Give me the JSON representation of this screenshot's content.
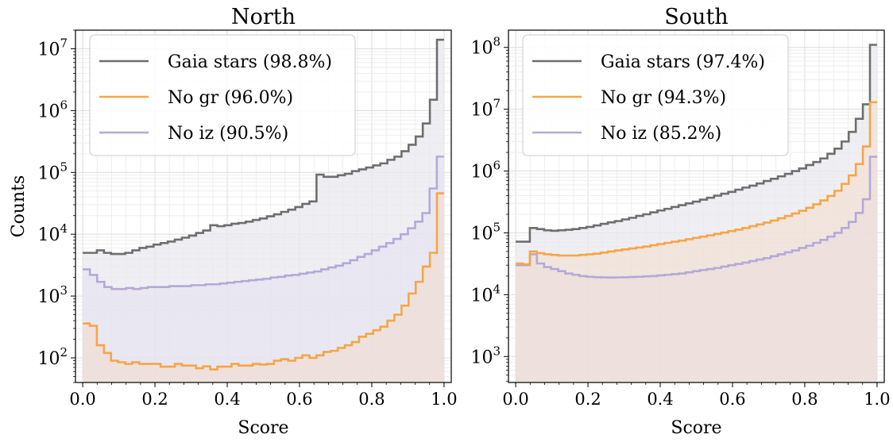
{
  "figure": {
    "ylabel": "Counts"
  },
  "colors": {
    "gaia": "#6e6e6e",
    "nogr": "#f7a545",
    "noiz": "#b4a9d8",
    "gaia_fill": "#e9e9ef",
    "nogr_fill": "#f3ddcc",
    "noiz_fill": "#e3e0ee"
  },
  "chart_data": [
    {
      "type": "line",
      "style": "step-histogram",
      "title": "North",
      "xlabel": "Score",
      "ylabel": "Counts",
      "xlim": [
        -0.02,
        1.02
      ],
      "ylim": [
        40,
        20000000
      ],
      "yscale": "log",
      "grid": true,
      "legend": "top-left",
      "x_ticks": [
        0.0,
        0.2,
        0.4,
        0.6,
        0.8,
        1.0
      ],
      "x_tick_labels": [
        "0.0",
        "0.2",
        "0.4",
        "0.6",
        "0.8",
        "1.0"
      ],
      "y_ticks": [
        100,
        1000,
        10000,
        100000,
        1000000,
        10000000
      ],
      "y_tick_labels": [
        [
          "10",
          "2"
        ],
        [
          "10",
          "3"
        ],
        [
          "10",
          "4"
        ],
        [
          "10",
          "5"
        ],
        [
          "10",
          "6"
        ],
        [
          "10",
          "7"
        ]
      ],
      "bin_edges_range": [
        0,
        1
      ],
      "bins": 50,
      "series": [
        {
          "name": "Gaia stars (98.8%)",
          "key": "gaia",
          "values": [
            5000,
            5000,
            5500,
            5000,
            4800,
            4800,
            5000,
            5500,
            6000,
            6300,
            6800,
            7200,
            7600,
            8200,
            8800,
            9500,
            10500,
            11500,
            14000,
            13500,
            14000,
            14800,
            15200,
            16000,
            17000,
            18000,
            19500,
            21000,
            23000,
            25000,
            27500,
            31000,
            34000,
            92000,
            85000,
            85000,
            90000,
            95000,
            105000,
            112000,
            120000,
            130000,
            140000,
            160000,
            180000,
            220000,
            280000,
            380000,
            620000,
            1500000,
            14000000
          ]
        },
        {
          "name": "No gr (96.0%)",
          "key": "nogr",
          "values": [
            360,
            330,
            160,
            120,
            90,
            85,
            80,
            85,
            80,
            80,
            80,
            72,
            72,
            80,
            75,
            75,
            68,
            73,
            65,
            72,
            72,
            80,
            75,
            75,
            80,
            78,
            80,
            90,
            95,
            90,
            100,
            110,
            100,
            110,
            125,
            130,
            145,
            160,
            180,
            220,
            245,
            280,
            320,
            400,
            500,
            700,
            1100,
            1700,
            3000,
            5000,
            46000
          ]
        },
        {
          "name": "No iz (90.5%)",
          "key": "noiz",
          "values": [
            2700,
            2200,
            1700,
            1400,
            1300,
            1300,
            1350,
            1300,
            1350,
            1400,
            1400,
            1400,
            1450,
            1450,
            1450,
            1500,
            1500,
            1550,
            1550,
            1600,
            1650,
            1700,
            1750,
            1800,
            1850,
            1900,
            2000,
            2050,
            2150,
            2200,
            2300,
            2400,
            2500,
            2700,
            2900,
            3100,
            3400,
            3800,
            4300,
            4800,
            5500,
            6300,
            7200,
            8400,
            10000,
            12500,
            16000,
            22000,
            55000,
            180000
          ]
        }
      ]
    },
    {
      "type": "line",
      "style": "step-histogram",
      "title": "South",
      "xlabel": "Score",
      "ylabel": "",
      "xlim": [
        -0.02,
        1.02
      ],
      "ylim": [
        380,
        190000000
      ],
      "yscale": "log",
      "grid": true,
      "legend": "top-left",
      "x_ticks": [
        0.0,
        0.2,
        0.4,
        0.6,
        0.8,
        1.0
      ],
      "x_tick_labels": [
        "0.0",
        "0.2",
        "0.4",
        "0.6",
        "0.8",
        "1.0"
      ],
      "y_ticks": [
        1000,
        10000,
        100000,
        1000000,
        10000000,
        100000000
      ],
      "y_tick_labels": [
        [
          "10",
          "3"
        ],
        [
          "10",
          "4"
        ],
        [
          "10",
          "5"
        ],
        [
          "10",
          "6"
        ],
        [
          "10",
          "7"
        ],
        [
          "10",
          "8"
        ]
      ],
      "bin_edges_range": [
        0,
        1
      ],
      "bins": 50,
      "series": [
        {
          "name": "Gaia stars (97.4%)",
          "key": "gaia",
          "values": [
            72000,
            72000,
            120000,
            115000,
            110000,
            108000,
            110000,
            112000,
            115000,
            120000,
            125000,
            132000,
            140000,
            148000,
            155000,
            165000,
            175000,
            188000,
            200000,
            215000,
            230000,
            245000,
            262000,
            280000,
            300000,
            320000,
            345000,
            370000,
            400000,
            430000,
            460000,
            500000,
            540000,
            580000,
            630000,
            690000,
            750000,
            820000,
            900000,
            1000000,
            1100000,
            1250000,
            1400000,
            1600000,
            1900000,
            2300000,
            3000000,
            4300000,
            7000000,
            12000000,
            110000000
          ]
        },
        {
          "name": "No gr (94.3%)",
          "key": "nogr",
          "values": [
            32000,
            31000,
            50000,
            47000,
            45000,
            44000,
            43000,
            43000,
            43000,
            44000,
            45000,
            46000,
            48000,
            50000,
            52000,
            54000,
            56000,
            58000,
            60000,
            63000,
            66000,
            69000,
            72000,
            75000,
            79000,
            83000,
            87000,
            91000,
            96000,
            101000,
            107000,
            113000,
            120000,
            128000,
            137000,
            147000,
            158000,
            172000,
            188000,
            206000,
            228000,
            255000,
            290000,
            335000,
            395000,
            480000,
            620000,
            850000,
            1300000,
            2500000,
            13000000
          ]
        },
        {
          "name": "No iz (85.2%)",
          "key": "noiz",
          "values": [
            30000,
            30000,
            45000,
            32000,
            28000,
            26000,
            24000,
            22000,
            21000,
            20000,
            19500,
            19200,
            19000,
            18900,
            19000,
            19100,
            19300,
            19500,
            19800,
            20000,
            20500,
            21000,
            21500,
            22000,
            23000,
            24000,
            25000,
            26000,
            27000,
            28500,
            30000,
            31500,
            33000,
            35000,
            37000,
            39000,
            42000,
            45000,
            48500,
            52000,
            57000,
            62000,
            69000,
            77000,
            87000,
            100000,
            120000,
            150000,
            210000,
            350000,
            1700000
          ]
        }
      ]
    }
  ]
}
